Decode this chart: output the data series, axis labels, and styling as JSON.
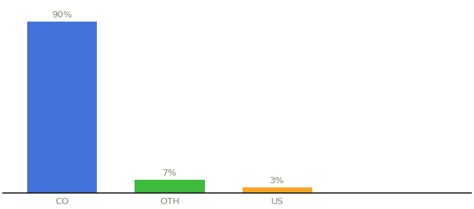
{
  "categories": [
    "CO",
    "OTH",
    "US"
  ],
  "values": [
    90,
    7,
    3
  ],
  "bar_colors": [
    "#4472db",
    "#3dbb3d",
    "#f5a623"
  ],
  "labels": [
    "90%",
    "7%",
    "3%"
  ],
  "background_color": "#ffffff",
  "ylim": [
    0,
    100
  ],
  "bar_width": 0.65,
  "label_fontsize": 9.5,
  "tick_fontsize": 9.5,
  "label_color": "#888877"
}
